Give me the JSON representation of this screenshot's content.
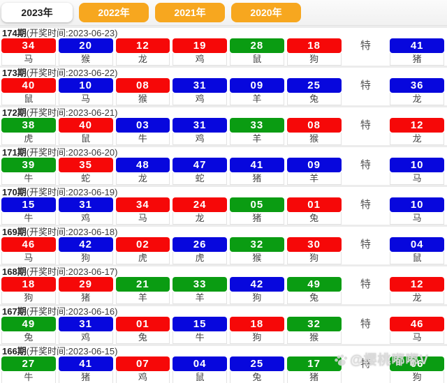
{
  "tabs": [
    {
      "label": "2023年",
      "active": true
    },
    {
      "label": "2022年",
      "active": false
    },
    {
      "label": "2021年",
      "active": false
    },
    {
      "label": "2020年",
      "active": false
    }
  ],
  "special_label": "特",
  "watermark": {
    "icon": "paw-icon",
    "text": "@樱桃嘟嘟V"
  },
  "colors": {
    "red": "#f60808",
    "blue": "#0707dd",
    "green": "#0a9c12",
    "tab_orange": "#f7a71f"
  },
  "draws": [
    {
      "period": "174期",
      "time": "(开奖时间:2023-06-23)",
      "balls": [
        {
          "num": "34",
          "color": "red",
          "zodiac": "马"
        },
        {
          "num": "20",
          "color": "blue",
          "zodiac": "猴"
        },
        {
          "num": "12",
          "color": "red",
          "zodiac": "龙"
        },
        {
          "num": "19",
          "color": "red",
          "zodiac": "鸡"
        },
        {
          "num": "28",
          "color": "green",
          "zodiac": "鼠"
        },
        {
          "num": "18",
          "color": "red",
          "zodiac": "狗"
        }
      ],
      "special": {
        "num": "41",
        "color": "blue",
        "zodiac": "猪"
      }
    },
    {
      "period": "173期",
      "time": "(开奖时间:2023-06-22)",
      "balls": [
        {
          "num": "40",
          "color": "red",
          "zodiac": "鼠"
        },
        {
          "num": "10",
          "color": "blue",
          "zodiac": "马"
        },
        {
          "num": "08",
          "color": "red",
          "zodiac": "猴"
        },
        {
          "num": "31",
          "color": "blue",
          "zodiac": "鸡"
        },
        {
          "num": "09",
          "color": "blue",
          "zodiac": "羊"
        },
        {
          "num": "25",
          "color": "blue",
          "zodiac": "兔"
        }
      ],
      "special": {
        "num": "36",
        "color": "blue",
        "zodiac": "龙"
      }
    },
    {
      "period": "172期",
      "time": "(开奖时间:2023-06-21)",
      "balls": [
        {
          "num": "38",
          "color": "green",
          "zodiac": "虎"
        },
        {
          "num": "40",
          "color": "red",
          "zodiac": "鼠"
        },
        {
          "num": "03",
          "color": "blue",
          "zodiac": "牛"
        },
        {
          "num": "31",
          "color": "blue",
          "zodiac": "鸡"
        },
        {
          "num": "33",
          "color": "green",
          "zodiac": "羊"
        },
        {
          "num": "08",
          "color": "red",
          "zodiac": "猴"
        }
      ],
      "special": {
        "num": "12",
        "color": "red",
        "zodiac": "龙"
      }
    },
    {
      "period": "171期",
      "time": "(开奖时间:2023-06-20)",
      "balls": [
        {
          "num": "39",
          "color": "green",
          "zodiac": "牛"
        },
        {
          "num": "35",
          "color": "red",
          "zodiac": "蛇"
        },
        {
          "num": "48",
          "color": "blue",
          "zodiac": "龙"
        },
        {
          "num": "47",
          "color": "blue",
          "zodiac": "蛇"
        },
        {
          "num": "41",
          "color": "blue",
          "zodiac": "猪"
        },
        {
          "num": "09",
          "color": "blue",
          "zodiac": "羊"
        }
      ],
      "special": {
        "num": "10",
        "color": "blue",
        "zodiac": "马"
      }
    },
    {
      "period": "170期",
      "time": "(开奖时间:2023-06-19)",
      "balls": [
        {
          "num": "15",
          "color": "blue",
          "zodiac": "牛"
        },
        {
          "num": "31",
          "color": "blue",
          "zodiac": "鸡"
        },
        {
          "num": "34",
          "color": "red",
          "zodiac": "马"
        },
        {
          "num": "24",
          "color": "red",
          "zodiac": "龙"
        },
        {
          "num": "05",
          "color": "green",
          "zodiac": "猪"
        },
        {
          "num": "01",
          "color": "red",
          "zodiac": "兔"
        }
      ],
      "special": {
        "num": "10",
        "color": "blue",
        "zodiac": "马"
      }
    },
    {
      "period": "169期",
      "time": "(开奖时间:2023-06-18)",
      "balls": [
        {
          "num": "46",
          "color": "red",
          "zodiac": "马"
        },
        {
          "num": "42",
          "color": "blue",
          "zodiac": "狗"
        },
        {
          "num": "02",
          "color": "red",
          "zodiac": "虎"
        },
        {
          "num": "26",
          "color": "blue",
          "zodiac": "虎"
        },
        {
          "num": "32",
          "color": "green",
          "zodiac": "猴"
        },
        {
          "num": "30",
          "color": "red",
          "zodiac": "狗"
        }
      ],
      "special": {
        "num": "04",
        "color": "blue",
        "zodiac": "鼠"
      }
    },
    {
      "period": "168期",
      "time": "(开奖时间:2023-06-17)",
      "balls": [
        {
          "num": "18",
          "color": "red",
          "zodiac": "狗"
        },
        {
          "num": "29",
          "color": "red",
          "zodiac": "猪"
        },
        {
          "num": "21",
          "color": "green",
          "zodiac": "羊"
        },
        {
          "num": "33",
          "color": "green",
          "zodiac": "羊"
        },
        {
          "num": "42",
          "color": "blue",
          "zodiac": "狗"
        },
        {
          "num": "49",
          "color": "green",
          "zodiac": "兔"
        }
      ],
      "special": {
        "num": "12",
        "color": "red",
        "zodiac": "龙"
      }
    },
    {
      "period": "167期",
      "time": "(开奖时间:2023-06-16)",
      "balls": [
        {
          "num": "49",
          "color": "green",
          "zodiac": "兔"
        },
        {
          "num": "31",
          "color": "blue",
          "zodiac": "鸡"
        },
        {
          "num": "01",
          "color": "red",
          "zodiac": "兔"
        },
        {
          "num": "15",
          "color": "blue",
          "zodiac": "牛"
        },
        {
          "num": "18",
          "color": "red",
          "zodiac": "狗"
        },
        {
          "num": "32",
          "color": "green",
          "zodiac": "猴"
        }
      ],
      "special": {
        "num": "46",
        "color": "red",
        "zodiac": "马"
      }
    },
    {
      "period": "166期",
      "time": "(开奖时间:2023-06-15)",
      "balls": [
        {
          "num": "27",
          "color": "green",
          "zodiac": "牛"
        },
        {
          "num": "41",
          "color": "blue",
          "zodiac": "猪"
        },
        {
          "num": "07",
          "color": "red",
          "zodiac": "鸡"
        },
        {
          "num": "04",
          "color": "blue",
          "zodiac": "鼠"
        },
        {
          "num": "25",
          "color": "blue",
          "zodiac": "兔"
        },
        {
          "num": "17",
          "color": "green",
          "zodiac": "猪"
        }
      ],
      "special": {
        "num": "06",
        "color": "green",
        "zodiac": "狗"
      }
    }
  ]
}
